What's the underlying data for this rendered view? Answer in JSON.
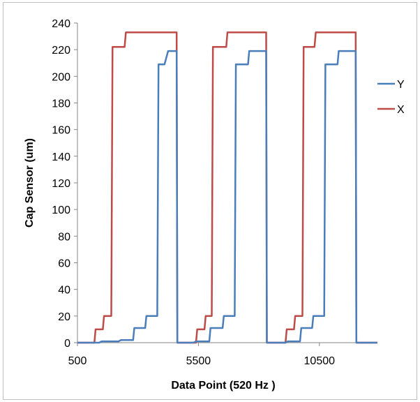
{
  "chart_data": {
    "type": "line",
    "title": "",
    "xlabel": "Data Point (520 Hz )",
    "ylabel": "Cap Sensor (um)",
    "xlim": [
      500,
      12900
    ],
    "ylim": [
      0,
      240
    ],
    "x_ticks": [
      500,
      5500,
      10500
    ],
    "y_ticks": [
      0,
      20,
      40,
      60,
      80,
      100,
      120,
      140,
      160,
      180,
      200,
      220,
      240
    ],
    "grid": false,
    "legend_position": "right",
    "series": [
      {
        "name": "Y",
        "color": "#4a7ebb",
        "x": [
          500,
          1400,
          1500,
          2200,
          2300,
          2800,
          2850,
          3300,
          3350,
          3800,
          3850,
          4100,
          4250,
          4600,
          4630,
          5300,
          5400,
          5950,
          6000,
          6500,
          6550,
          7000,
          7050,
          7550,
          7600,
          8000,
          8100,
          8300,
          8330,
          9100,
          9200,
          9700,
          9750,
          10200,
          10250,
          10700,
          10750,
          11250,
          11300,
          11600,
          11750,
          12000,
          12030,
          12900
        ],
        "values": [
          0,
          0,
          1,
          1,
          2,
          2,
          11,
          11,
          20,
          20,
          209,
          209,
          219,
          219,
          0,
          0,
          1,
          1,
          11,
          11,
          20,
          20,
          209,
          209,
          219,
          219,
          219,
          219,
          0,
          0,
          1,
          1,
          11,
          11,
          20,
          20,
          209,
          209,
          219,
          219,
          219,
          219,
          0,
          0
        ]
      },
      {
        "name": "X",
        "color": "#be4b48",
        "x": [
          500,
          1200,
          1250,
          1550,
          1600,
          1900,
          1950,
          2450,
          2500,
          4600,
          4630,
          5400,
          5450,
          5750,
          5800,
          6050,
          6100,
          6650,
          6700,
          8300,
          8330,
          9100,
          9150,
          9450,
          9500,
          9800,
          9850,
          10300,
          10350,
          12000,
          12030,
          12900
        ],
        "values": [
          0,
          0,
          10,
          10,
          20,
          20,
          222,
          222,
          233,
          233,
          0,
          0,
          10,
          10,
          20,
          20,
          222,
          222,
          233,
          233,
          0,
          0,
          10,
          10,
          20,
          20,
          222,
          222,
          233,
          233,
          0,
          0
        ]
      }
    ]
  }
}
